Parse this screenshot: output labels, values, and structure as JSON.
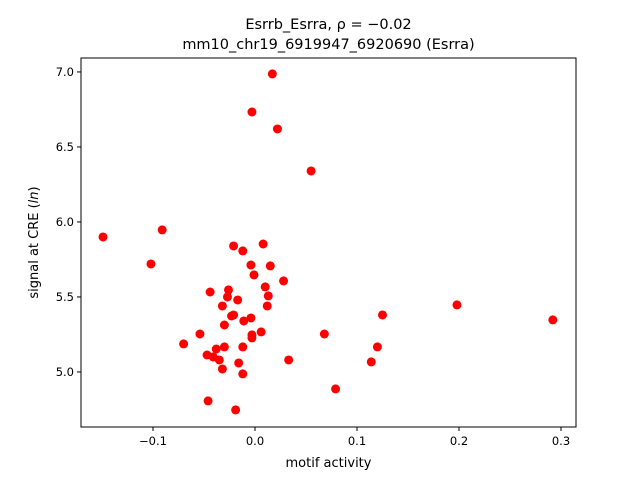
{
  "chart_data": {
    "type": "scatter",
    "title": "Esrrb_Esrra, ρ = −0.02",
    "subtitle": "mm10_chr19_6919947_6920690 (Esrra)",
    "xlabel": "motif activity",
    "ylabel_prefix": "signal at CRE (",
    "ylabel_italic": "ln",
    "ylabel_suffix": ")",
    "xlim": [
      -0.1706,
      0.3147
    ],
    "ylim": [
      4.633,
      7.093
    ],
    "xticks": [
      -0.1,
      0.0,
      0.1,
      0.2,
      0.3
    ],
    "xtick_labels": [
      "−0.1",
      "0.0",
      "0.1",
      "0.2",
      "0.3"
    ],
    "yticks": [
      5.0,
      5.5,
      6.0,
      6.5,
      7.0
    ],
    "ytick_labels": [
      "5.0",
      "5.5",
      "6.0",
      "6.5",
      "7.0"
    ],
    "grid": false,
    "marker_color": "#ff0000",
    "points": [
      [
        -0.149,
        5.9
      ],
      [
        -0.091,
        5.947
      ],
      [
        -0.102,
        5.72
      ],
      [
        0.017,
        6.987
      ],
      [
        -0.003,
        6.733
      ],
      [
        0.022,
        6.62
      ],
      [
        0.055,
        6.34
      ],
      [
        0.198,
        5.447
      ],
      [
        0.125,
        5.38
      ],
      [
        0.068,
        5.253
      ],
      [
        0.12,
        5.167
      ],
      [
        0.114,
        5.067
      ],
      [
        0.079,
        4.887
      ],
      [
        0.292,
        5.347
      ],
      [
        -0.07,
        5.187
      ],
      [
        -0.021,
        5.84
      ],
      [
        -0.012,
        5.807
      ],
      [
        0.008,
        5.853
      ],
      [
        -0.004,
        5.713
      ],
      [
        0.015,
        5.707
      ],
      [
        -0.001,
        5.647
      ],
      [
        0.028,
        5.607
      ],
      [
        0.01,
        5.567
      ],
      [
        -0.044,
        5.533
      ],
      [
        -0.026,
        5.547
      ],
      [
        -0.027,
        5.5
      ],
      [
        -0.017,
        5.48
      ],
      [
        0.013,
        5.507
      ],
      [
        0.012,
        5.44
      ],
      [
        -0.032,
        5.44
      ],
      [
        -0.023,
        5.373
      ],
      [
        -0.021,
        5.38
      ],
      [
        -0.011,
        5.34
      ],
      [
        -0.004,
        5.36
      ],
      [
        -0.03,
        5.313
      ],
      [
        -0.054,
        5.253
      ],
      [
        -0.003,
        5.247
      ],
      [
        0.006,
        5.267
      ],
      [
        -0.003,
        5.227
      ],
      [
        -0.038,
        5.153
      ],
      [
        -0.03,
        5.167
      ],
      [
        -0.012,
        5.167
      ],
      [
        -0.047,
        5.113
      ],
      [
        -0.041,
        5.1
      ],
      [
        -0.035,
        5.08
      ],
      [
        -0.032,
        5.02
      ],
      [
        -0.016,
        5.06
      ],
      [
        -0.012,
        4.987
      ],
      [
        0.033,
        5.08
      ],
      [
        -0.046,
        4.807
      ],
      [
        -0.019,
        4.747
      ]
    ]
  }
}
